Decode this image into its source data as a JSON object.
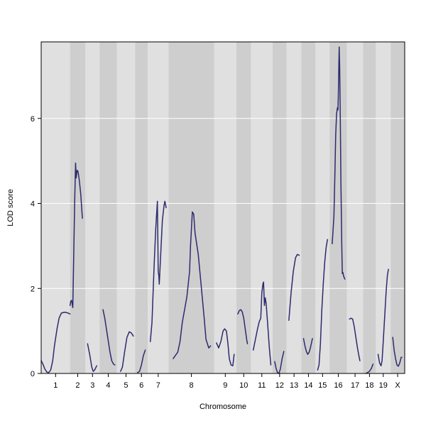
{
  "chart_data": {
    "type": "line",
    "xlabel": "Chromosome",
    "ylabel": "LOD score",
    "ylim": [
      0,
      7.8
    ],
    "yticks": [
      0,
      2,
      4,
      6
    ],
    "grid": "horizontal",
    "legend": "none",
    "colors": {
      "line": "#2d2a6e",
      "band_light": "#e0e0e0",
      "band_dark": "#cecece",
      "grid": "#ffffff",
      "frame": "#000000"
    },
    "chromosomes": [
      {
        "name": "1",
        "points": [
          [
            0,
            0.3
          ],
          [
            0.06,
            0.22
          ],
          [
            0.13,
            0.1
          ],
          [
            0.2,
            0.03
          ],
          [
            0.26,
            0.02
          ],
          [
            0.33,
            0.08
          ],
          [
            0.4,
            0.3
          ],
          [
            0.46,
            0.65
          ],
          [
            0.55,
            1.05
          ],
          [
            0.62,
            1.3
          ],
          [
            0.7,
            1.42
          ],
          [
            0.8,
            1.44
          ],
          [
            0.9,
            1.43
          ],
          [
            1,
            1.4
          ]
        ]
      },
      {
        "name": "2",
        "points": [
          [
            0,
            1.6
          ],
          [
            0.05,
            1.7
          ],
          [
            0.1,
            1.72
          ],
          [
            0.18,
            1.55
          ],
          [
            0.3,
            4.0
          ],
          [
            0.36,
            4.95
          ],
          [
            0.4,
            4.6
          ],
          [
            0.46,
            4.78
          ],
          [
            0.52,
            4.75
          ],
          [
            0.6,
            4.55
          ],
          [
            0.7,
            4.2
          ],
          [
            0.8,
            3.65
          ]
        ]
      },
      {
        "name": "3",
        "points": [
          [
            0.15,
            0.7
          ],
          [
            0.3,
            0.45
          ],
          [
            0.45,
            0.15
          ],
          [
            0.55,
            0.05
          ],
          [
            0.65,
            0.08
          ],
          [
            0.8,
            0.18
          ]
        ]
      },
      {
        "name": "4",
        "points": [
          [
            0.2,
            1.5
          ],
          [
            0.3,
            1.3
          ],
          [
            0.45,
            0.9
          ],
          [
            0.6,
            0.5
          ],
          [
            0.7,
            0.3
          ],
          [
            0.8,
            0.22
          ],
          [
            0.88,
            0.2
          ]
        ]
      },
      {
        "name": "5",
        "points": [
          [
            0.2,
            0.05
          ],
          [
            0.3,
            0.15
          ],
          [
            0.42,
            0.5
          ],
          [
            0.55,
            0.85
          ],
          [
            0.68,
            0.98
          ],
          [
            0.8,
            0.95
          ],
          [
            0.9,
            0.88
          ]
        ]
      },
      {
        "name": "6",
        "points": [
          [
            0.2,
            0.02
          ],
          [
            0.35,
            0.05
          ],
          [
            0.5,
            0.2
          ],
          [
            0.65,
            0.42
          ],
          [
            0.8,
            0.55
          ]
        ]
      },
      {
        "name": "7",
        "points": [
          [
            0.12,
            0.75
          ],
          [
            0.2,
            1.2
          ],
          [
            0.3,
            2.5
          ],
          [
            0.38,
            3.4
          ],
          [
            0.46,
            4.05
          ],
          [
            0.5,
            2.4
          ],
          [
            0.53,
            2.3
          ],
          [
            0.55,
            2.1
          ],
          [
            0.63,
            2.9
          ],
          [
            0.7,
            3.6
          ],
          [
            0.78,
            3.95
          ],
          [
            0.82,
            4.05
          ],
          [
            0.88,
            3.9
          ]
        ]
      },
      {
        "name": "8",
        "points": [
          [
            0.1,
            0.35
          ],
          [
            0.2,
            0.5
          ],
          [
            0.25,
            0.75
          ],
          [
            0.3,
            1.2
          ],
          [
            0.4,
            1.8
          ],
          [
            0.46,
            2.4
          ],
          [
            0.48,
            3.0
          ],
          [
            0.52,
            3.8
          ],
          [
            0.55,
            3.75
          ],
          [
            0.58,
            3.3
          ],
          [
            0.65,
            2.8
          ],
          [
            0.72,
            2.0
          ],
          [
            0.78,
            1.3
          ],
          [
            0.82,
            0.8
          ],
          [
            0.88,
            0.6
          ],
          [
            0.92,
            0.65
          ]
        ]
      },
      {
        "name": "9",
        "points": [
          [
            0.1,
            0.72
          ],
          [
            0.2,
            0.6
          ],
          [
            0.3,
            0.75
          ],
          [
            0.4,
            1.0
          ],
          [
            0.47,
            1.05
          ],
          [
            0.55,
            1.0
          ],
          [
            0.62,
            0.7
          ],
          [
            0.68,
            0.35
          ],
          [
            0.76,
            0.2
          ],
          [
            0.84,
            0.18
          ],
          [
            0.9,
            0.45
          ]
        ]
      },
      {
        "name": "10",
        "points": [
          [
            0.1,
            1.4
          ],
          [
            0.2,
            1.48
          ],
          [
            0.3,
            1.5
          ],
          [
            0.4,
            1.45
          ],
          [
            0.5,
            1.3
          ],
          [
            0.6,
            1.05
          ],
          [
            0.7,
            0.8
          ],
          [
            0.75,
            0.7
          ]
        ]
      },
      {
        "name": "11",
        "points": [
          [
            0.1,
            0.55
          ],
          [
            0.2,
            0.8
          ],
          [
            0.3,
            1.05
          ],
          [
            0.38,
            1.22
          ],
          [
            0.45,
            1.3
          ],
          [
            0.5,
            1.9
          ],
          [
            0.55,
            2.1
          ],
          [
            0.58,
            2.15
          ],
          [
            0.62,
            1.6
          ],
          [
            0.66,
            1.78
          ],
          [
            0.7,
            1.65
          ],
          [
            0.78,
            1.1
          ],
          [
            0.85,
            0.6
          ],
          [
            0.92,
            0.2
          ]
        ]
      },
      {
        "name": "12",
        "points": [
          [
            0.15,
            0.28
          ],
          [
            0.25,
            0.12
          ],
          [
            0.35,
            0.02
          ],
          [
            0.45,
            0.0
          ],
          [
            0.55,
            0.1
          ],
          [
            0.68,
            0.35
          ],
          [
            0.8,
            0.52
          ]
        ]
      },
      {
        "name": "13",
        "points": [
          [
            0.15,
            1.25
          ],
          [
            0.3,
            1.9
          ],
          [
            0.45,
            2.4
          ],
          [
            0.6,
            2.72
          ],
          [
            0.72,
            2.8
          ],
          [
            0.85,
            2.78
          ]
        ]
      },
      {
        "name": "14",
        "points": [
          [
            0.15,
            0.82
          ],
          [
            0.25,
            0.65
          ],
          [
            0.35,
            0.52
          ],
          [
            0.45,
            0.45
          ],
          [
            0.55,
            0.5
          ],
          [
            0.65,
            0.62
          ],
          [
            0.78,
            0.82
          ]
        ]
      },
      {
        "name": "15",
        "points": [
          [
            0.15,
            0.08
          ],
          [
            0.25,
            0.2
          ],
          [
            0.35,
            0.7
          ],
          [
            0.45,
            1.5
          ],
          [
            0.55,
            2.1
          ],
          [
            0.65,
            2.6
          ],
          [
            0.75,
            2.95
          ],
          [
            0.85,
            3.15
          ]
        ]
      },
      {
        "name": "16",
        "points": [
          [
            0.15,
            3.05
          ],
          [
            0.25,
            3.7
          ],
          [
            0.3,
            4.6
          ],
          [
            0.35,
            5.6
          ],
          [
            0.4,
            6.1
          ],
          [
            0.45,
            6.25
          ],
          [
            0.48,
            6.2
          ],
          [
            0.5,
            6.5
          ],
          [
            0.55,
            7.68
          ],
          [
            0.58,
            7.2
          ],
          [
            0.62,
            5.8
          ],
          [
            0.65,
            4.5
          ],
          [
            0.7,
            3.0
          ],
          [
            0.73,
            2.35
          ],
          [
            0.76,
            2.38
          ],
          [
            0.8,
            2.3
          ],
          [
            0.84,
            2.25
          ],
          [
            0.88,
            2.22
          ]
        ]
      },
      {
        "name": "17",
        "points": [
          [
            0.15,
            1.28
          ],
          [
            0.25,
            1.3
          ],
          [
            0.35,
            1.28
          ],
          [
            0.45,
            1.1
          ],
          [
            0.55,
            0.85
          ],
          [
            0.65,
            0.6
          ],
          [
            0.72,
            0.45
          ],
          [
            0.8,
            0.3
          ]
        ]
      },
      {
        "name": "18",
        "points": [
          [
            0.2,
            0.0
          ],
          [
            0.35,
            0.02
          ],
          [
            0.5,
            0.05
          ],
          [
            0.65,
            0.12
          ],
          [
            0.78,
            0.22
          ]
        ]
      },
      {
        "name": "19",
        "points": [
          [
            0.15,
            0.45
          ],
          [
            0.25,
            0.25
          ],
          [
            0.35,
            0.18
          ],
          [
            0.42,
            0.3
          ],
          [
            0.5,
            0.75
          ],
          [
            0.6,
            1.35
          ],
          [
            0.7,
            1.95
          ],
          [
            0.78,
            2.3
          ],
          [
            0.85,
            2.45
          ]
        ]
      },
      {
        "name": "X",
        "points": [
          [
            0.15,
            0.85
          ],
          [
            0.25,
            0.55
          ],
          [
            0.35,
            0.35
          ],
          [
            0.45,
            0.2
          ],
          [
            0.55,
            0.17
          ],
          [
            0.65,
            0.25
          ],
          [
            0.75,
            0.38
          ],
          [
            0.8,
            0.38
          ]
        ]
      }
    ]
  }
}
